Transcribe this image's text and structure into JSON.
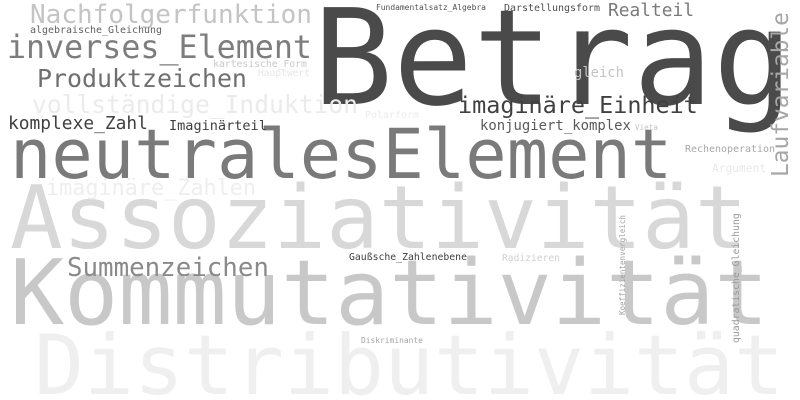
{
  "word_cloud": {
    "background": "#ffffff",
    "words": [
      {
        "id": "betrag",
        "text": "Betrag",
        "color": "#4a4a4a"
      },
      {
        "id": "neutrales-element",
        "text": "neutralesElement",
        "color": "#7a7a7a"
      },
      {
        "id": "assoziativitaet",
        "text": "Assoziativität",
        "color": "#d8d8d8"
      },
      {
        "id": "kommutativitaet",
        "text": "Kommutativität",
        "color": "#c8c8c8"
      },
      {
        "id": "distributivitaet",
        "text": "Distributivität",
        "color": "#efefef"
      },
      {
        "id": "nachfolgerfunktion",
        "text": "Nachfolgerfunktion",
        "color": "#c4c4c4"
      },
      {
        "id": "inverses-element",
        "text": "inverses_Element",
        "color": "#7d7d7d"
      },
      {
        "id": "produktzeichen",
        "text": "Produktzeichen",
        "color": "#6f6f6f"
      },
      {
        "id": "vollstaendige-induktion",
        "text": "vollständige_Induktion",
        "color": "#ebebeb"
      },
      {
        "id": "imaginaere-einheit",
        "text": "imaginäre_Einheit",
        "color": "#404040"
      },
      {
        "id": "komplexe-zahl",
        "text": "komplexe_Zahl",
        "color": "#404040"
      },
      {
        "id": "imaginaerteil",
        "text": "Imaginärteil",
        "color": "#404040"
      },
      {
        "id": "konjugiert-komplex",
        "text": "konjugiert_komplex",
        "color": "#5a5a5a"
      },
      {
        "id": "imaginaere-zahlen",
        "text": "imaginäre_Zahlen",
        "color": "#eeeeee"
      },
      {
        "id": "summenzeichen",
        "text": "Summenzeichen",
        "color": "#8a8a8a"
      },
      {
        "id": "realteil",
        "text": "Realteil",
        "color": "#7a7a7a"
      },
      {
        "id": "laufvariable",
        "text": "Laufvariable",
        "color": "#a6a6a6"
      },
      {
        "id": "gleich",
        "text": "gleich",
        "color": "#c4c4c4"
      },
      {
        "id": "darstellungsform",
        "text": "Darstellungsform",
        "color": "#505050"
      },
      {
        "id": "fundamentalsatz-algebra",
        "text": "Fundamentalsatz_Algebra",
        "color": "#505050"
      },
      {
        "id": "algebraische-gleichung",
        "text": "algebraische_Gleichung",
        "color": "#606060"
      },
      {
        "id": "kartesische-form",
        "text": "kartesische_Form",
        "color": "#c8c8c8"
      },
      {
        "id": "hauptwert",
        "text": "Hauptwert",
        "color": "#e6e6e6"
      },
      {
        "id": "polarform",
        "text": "Polarform",
        "color": "#ececec"
      },
      {
        "id": "vieta",
        "text": "Vieta",
        "color": "#c4c4c4"
      },
      {
        "id": "rechenoperation",
        "text": "Rechenoperation",
        "color": "#a8a8a8"
      },
      {
        "id": "argument",
        "text": "Argument",
        "color": "#e8e8e8"
      },
      {
        "id": "gausssche-zahlenebene",
        "text": "Gaußsche_Zahlenebene",
        "color": "#404040"
      },
      {
        "id": "radizieren",
        "text": "Radizieren",
        "color": "#d0d0d0"
      },
      {
        "id": "diskriminante",
        "text": "Diskriminante",
        "color": "#a6a6a6"
      },
      {
        "id": "koeffizientenvergleich",
        "text": "Koeffizientenvergleich",
        "color": "#a0a0a0"
      },
      {
        "id": "quadratische-gleichung",
        "text": "quadratische_Gleichung",
        "color": "#9a9a9a"
      }
    ]
  }
}
